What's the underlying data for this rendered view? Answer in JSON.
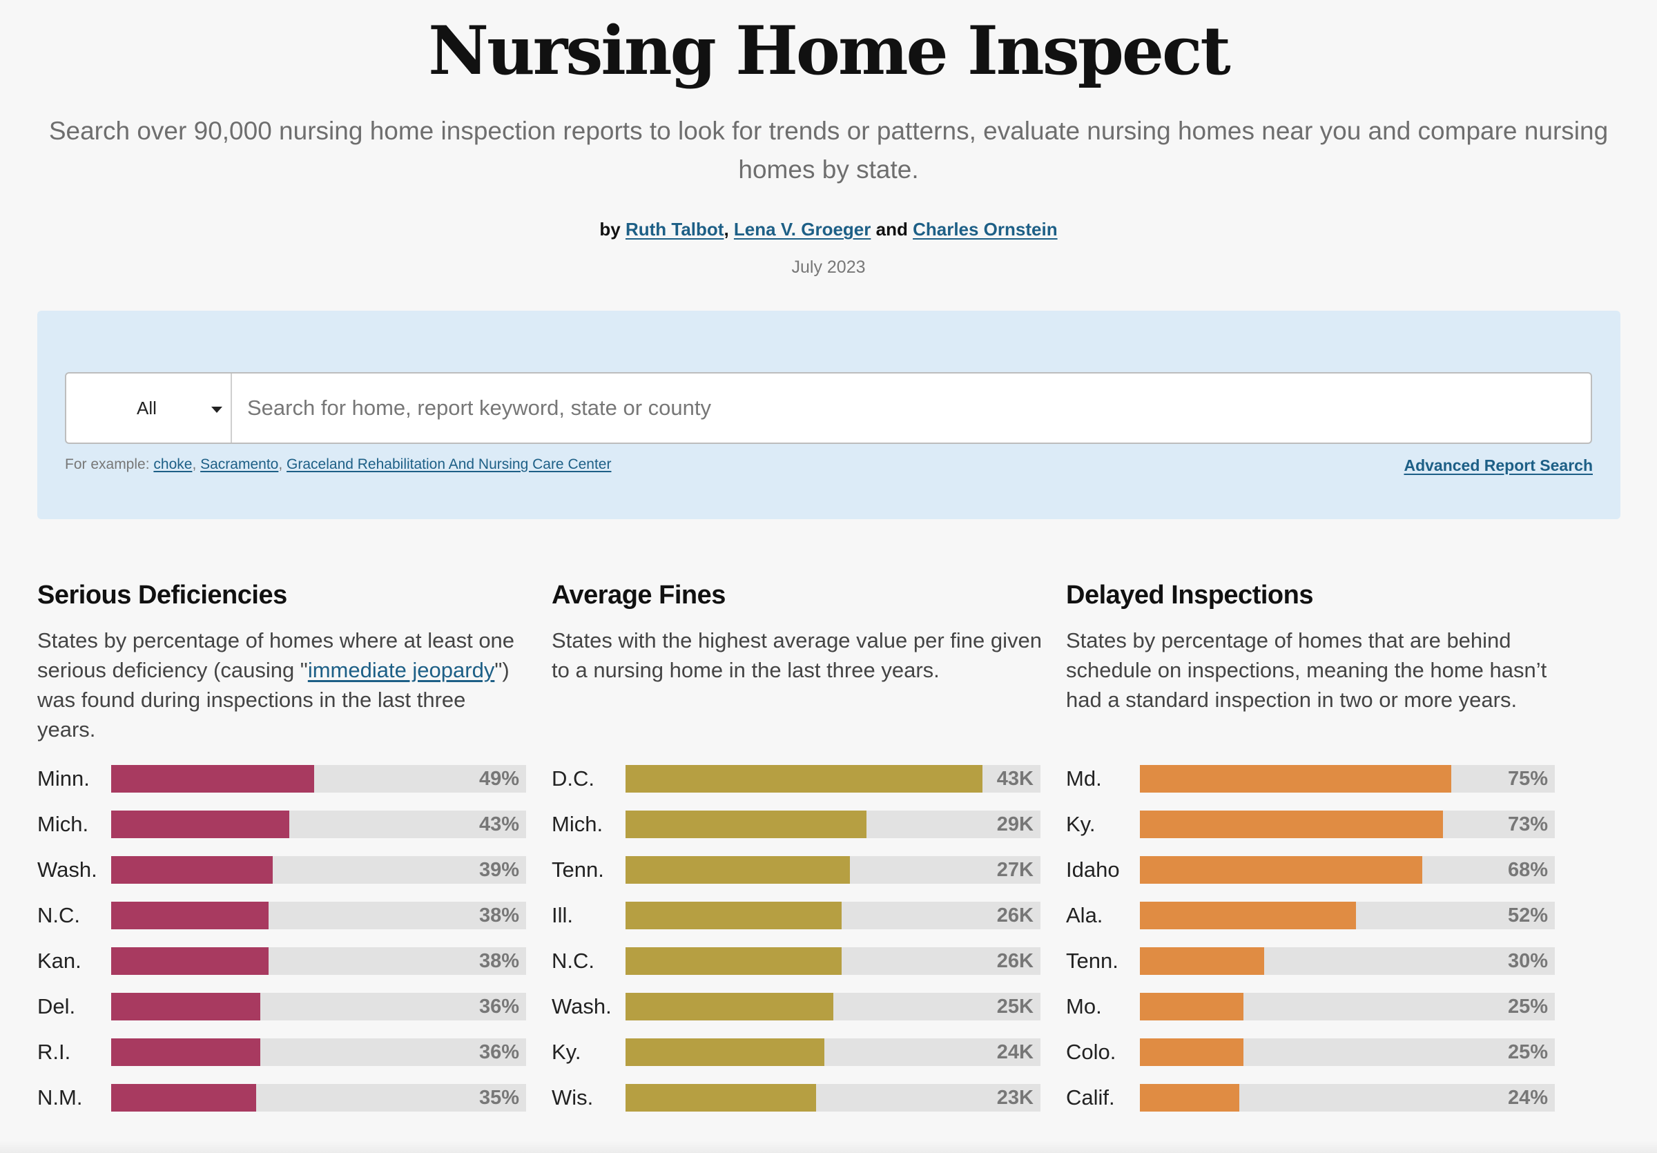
{
  "header": {
    "title": "Nursing Home Inspect",
    "subtitle": "Search over 90,000 nursing home inspection reports to look for trends or patterns, evaluate nursing homes near you and compare nursing homes by state.",
    "byline_prefix": "by",
    "authors": [
      "Ruth Talbot",
      "Lena V. Groeger",
      "Charles Ornstein"
    ],
    "author_sep": ",",
    "author_and": "and",
    "date": "July 2023"
  },
  "search": {
    "scope_value": "All",
    "placeholder": "Search for home, report keyword, state or county",
    "examples_prefix": "For example:",
    "examples": [
      "choke",
      "Sacramento",
      "Graceland Rehabilitation And Nursing Care Center"
    ],
    "example_sep": ",",
    "advanced_label": "Advanced Report Search"
  },
  "colors": {
    "serious": "#a83a60",
    "fines": "#b69f42",
    "delayed": "#e08c43"
  },
  "chart_data": [
    {
      "type": "bar",
      "title": "Serious Deficiencies",
      "description_parts": [
        "States by percentage of homes where at least one serious deficiency (causing \"",
        "immediate jeopardy",
        "\") was found during inspections in the last three years."
      ],
      "categories": [
        "Minn.",
        "Mich.",
        "Wash.",
        "N.C.",
        "Kan.",
        "Del.",
        "R.I.",
        "N.M."
      ],
      "values": [
        49,
        43,
        39,
        38,
        38,
        36,
        36,
        35
      ],
      "value_labels": [
        "49%",
        "43%",
        "39%",
        "38%",
        "38%",
        "36%",
        "36%",
        "35%"
      ],
      "xlim": [
        0,
        100
      ],
      "color_key": "serious"
    },
    {
      "type": "bar",
      "title": "Average Fines",
      "description_parts": [
        "States with the highest average value per fine given to a nursing home in the last three years.",
        "",
        ""
      ],
      "categories": [
        "D.C.",
        "Mich.",
        "Tenn.",
        "Ill.",
        "N.C.",
        "Wash.",
        "Ky.",
        "Wis."
      ],
      "values": [
        43,
        29,
        27,
        26,
        26,
        25,
        24,
        23
      ],
      "value_labels": [
        "43K",
        "29K",
        "27K",
        "26K",
        "26K",
        "25K",
        "24K",
        "23K"
      ],
      "xlim": [
        0,
        50
      ],
      "color_key": "fines"
    },
    {
      "type": "bar",
      "title": "Delayed Inspections",
      "description_parts": [
        "States by percentage of homes that are behind schedule on inspections, meaning the home hasn’t had a standard inspection in two or more years.",
        "",
        ""
      ],
      "categories": [
        "Md.",
        "Ky.",
        "Idaho",
        "Ala.",
        "Tenn.",
        "Mo.",
        "Colo.",
        "Calif."
      ],
      "values": [
        75,
        73,
        68,
        52,
        30,
        25,
        25,
        24
      ],
      "value_labels": [
        "75%",
        "73%",
        "68%",
        "52%",
        "30%",
        "25%",
        "25%",
        "24%"
      ],
      "xlim": [
        0,
        100
      ],
      "color_key": "delayed"
    }
  ]
}
